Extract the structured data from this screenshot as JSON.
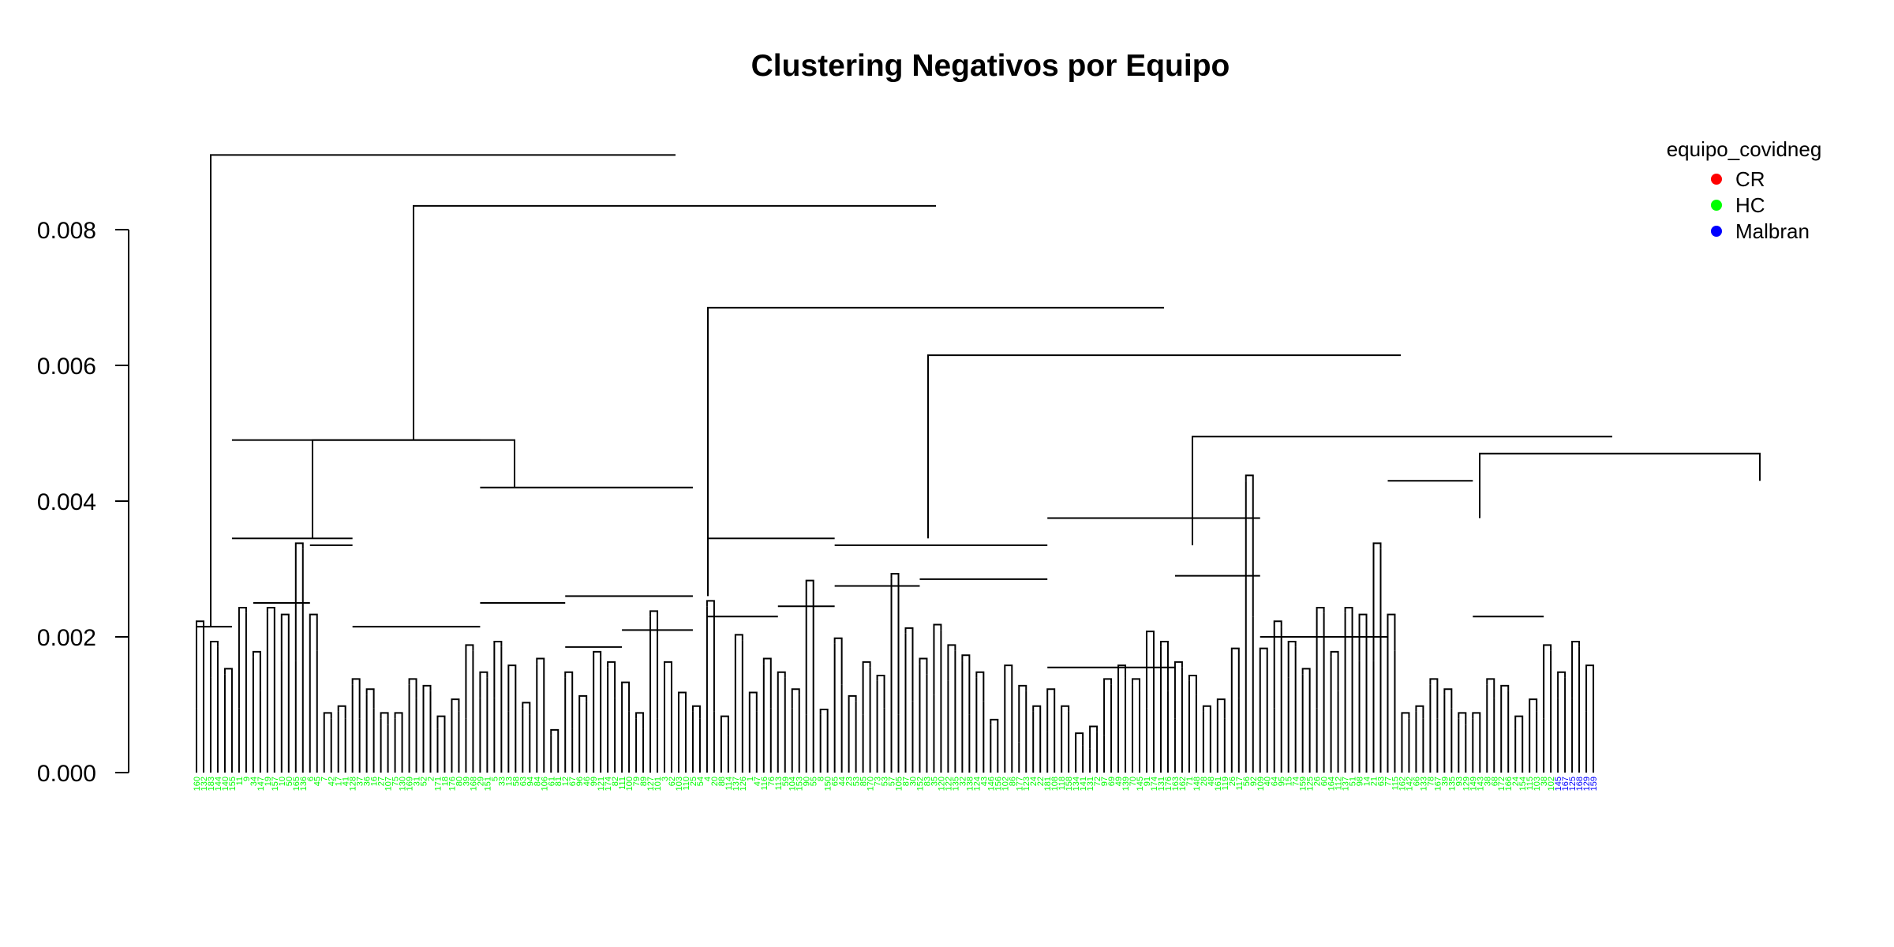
{
  "chart_data": {
    "type": "dendrogram",
    "title": "Clustering Negativos por Equipo",
    "y_axis": {
      "ylim": [
        0,
        0.0092
      ],
      "ticks": [
        0.0,
        0.002,
        0.004,
        0.006,
        0.008
      ],
      "tick_labels": [
        "0.000",
        "0.002",
        "0.004",
        "0.006",
        "0.008"
      ]
    },
    "legend": {
      "title": "equipo_covidneg",
      "placement": "top-right",
      "entries": [
        {
          "label": "CR",
          "color": "#ff0000"
        },
        {
          "label": "HC",
          "color": "#00ff00"
        },
        {
          "label": "Malbran",
          "color": "#0000ff"
        }
      ]
    },
    "colors": {
      "CR": "#ff0000",
      "HC": "#00ff00",
      "Malbran": "#0000ff"
    },
    "leaf_labels": [
      "160",
      "132",
      "183",
      "144",
      "140",
      "155",
      "11",
      "9",
      "34",
      "147",
      "19",
      "157",
      "10",
      "50",
      "165",
      "136",
      "6",
      "45",
      "7",
      "42",
      "17",
      "41",
      "128",
      "37",
      "36",
      "16",
      "27",
      "107",
      "75",
      "130",
      "169",
      "31",
      "52",
      "2",
      "171",
      "18",
      "176",
      "80",
      "39",
      "168",
      "29",
      "151",
      "5",
      "33",
      "13",
      "58",
      "63",
      "94",
      "84",
      "106",
      "61",
      "81",
      "12",
      "67",
      "96",
      "46",
      "99",
      "121",
      "174",
      "82",
      "111",
      "100",
      "79",
      "89",
      "127",
      "101",
      "3",
      "62",
      "103",
      "110",
      "25",
      "54",
      "4",
      "20",
      "88",
      "114",
      "137",
      "126",
      "1",
      "47",
      "116",
      "76",
      "113",
      "59",
      "104",
      "153",
      "90",
      "55",
      "8",
      "150",
      "65",
      "44",
      "23",
      "53",
      "85",
      "170",
      "73",
      "53",
      "57",
      "105",
      "87",
      "30",
      "152",
      "83",
      "35",
      "120",
      "122",
      "135",
      "32",
      "138",
      "124",
      "43",
      "146",
      "156",
      "102",
      "86",
      "177",
      "123",
      "24",
      "22",
      "181",
      "108",
      "118",
      "158",
      "134",
      "141",
      "131",
      "72",
      "97",
      "69",
      "49",
      "139",
      "70",
      "145",
      "91",
      "174",
      "131",
      "176",
      "163",
      "162",
      "71",
      "148",
      "28",
      "48",
      "161",
      "119",
      "26",
      "117",
      "56",
      "92",
      "109",
      "40",
      "64",
      "95",
      "15",
      "74",
      "159",
      "125",
      "26",
      "60",
      "164",
      "112",
      "137",
      "51",
      "98",
      "14",
      "21",
      "63",
      "77",
      "115",
      "162",
      "142",
      "66",
      "133",
      "78",
      "167",
      "39",
      "135",
      "93",
      "129",
      "149",
      "143",
      "38",
      "68",
      "172",
      "166",
      "24",
      "154",
      "115",
      "103",
      "38",
      "102",
      "145",
      "167",
      "125",
      "168",
      "129",
      "159"
    ],
    "leaf_groups": [
      "HC",
      "HC",
      "HC",
      "HC",
      "HC",
      "HC",
      "HC",
      "HC",
      "HC",
      "HC",
      "HC",
      "HC",
      "HC",
      "HC",
      "HC",
      "HC",
      "HC",
      "HC",
      "HC",
      "HC",
      "HC",
      "HC",
      "HC",
      "HC",
      "HC",
      "HC",
      "HC",
      "HC",
      "HC",
      "HC",
      "HC",
      "HC",
      "HC",
      "HC",
      "HC",
      "HC",
      "HC",
      "HC",
      "HC",
      "HC",
      "HC",
      "HC",
      "HC",
      "HC",
      "HC",
      "HC",
      "HC",
      "HC",
      "HC",
      "HC",
      "HC",
      "HC",
      "HC",
      "HC",
      "HC",
      "HC",
      "HC",
      "HC",
      "HC",
      "HC",
      "HC",
      "HC",
      "HC",
      "HC",
      "HC",
      "HC",
      "HC",
      "HC",
      "HC",
      "HC",
      "HC",
      "HC",
      "HC",
      "HC",
      "HC",
      "HC",
      "HC",
      "HC",
      "HC",
      "HC",
      "HC",
      "HC",
      "HC",
      "HC",
      "HC",
      "HC",
      "HC",
      "HC",
      "HC",
      "HC",
      "HC",
      "HC",
      "HC",
      "HC",
      "HC",
      "HC",
      "HC",
      "HC",
      "HC",
      "HC",
      "HC",
      "HC",
      "HC",
      "HC",
      "HC",
      "HC",
      "HC",
      "HC",
      "HC",
      "HC",
      "HC",
      "HC",
      "HC",
      "HC",
      "HC",
      "HC",
      "HC",
      "HC",
      "HC",
      "HC",
      "HC",
      "HC",
      "HC",
      "HC",
      "HC",
      "HC",
      "HC",
      "HC",
      "HC",
      "HC",
      "HC",
      "HC",
      "HC",
      "HC",
      "HC",
      "HC",
      "HC",
      "HC",
      "HC",
      "HC",
      "HC",
      "HC",
      "HC",
      "HC",
      "HC",
      "HC",
      "HC",
      "HC",
      "HC",
      "HC",
      "HC",
      "HC",
      "HC",
      "HC",
      "HC",
      "HC",
      "HC",
      "HC",
      "HC",
      "HC",
      "HC",
      "HC",
      "HC",
      "HC",
      "HC",
      "HC",
      "HC",
      "HC",
      "HC",
      "HC",
      "HC",
      "HC",
      "HC",
      "HC",
      "HC",
      "HC",
      "HC",
      "HC",
      "HC",
      "HC",
      "HC",
      "HC",
      "HC",
      "HC",
      "HC",
      "HC",
      "HC",
      "HC",
      "HC",
      "HC",
      "HC",
      "HC",
      "Malbran",
      "Malbran",
      "Malbran",
      "Malbran",
      "Malbran",
      "Malbran"
    ]
  }
}
